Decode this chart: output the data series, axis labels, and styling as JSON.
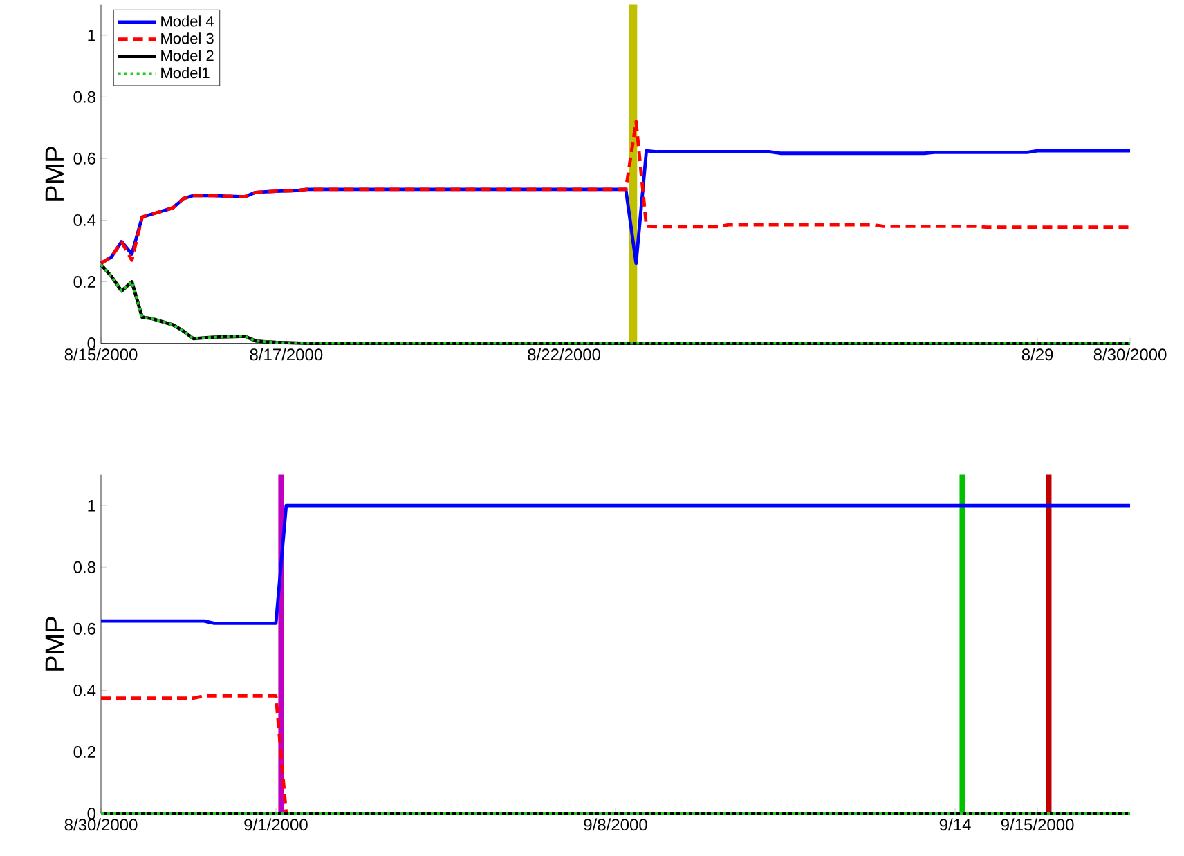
{
  "chart_data": [
    {
      "type": "line",
      "ylabel": "PMP",
      "ylim": [
        0,
        1.1
      ],
      "categories": [
        "8/15/2000",
        null,
        null,
        null,
        null,
        null,
        null,
        null,
        null,
        null,
        null,
        null,
        null,
        null,
        null,
        null,
        null,
        null,
        "8/17/2000",
        null,
        null,
        null,
        null,
        null,
        null,
        null,
        null,
        null,
        null,
        null,
        null,
        null,
        null,
        null,
        null,
        null,
        null,
        null,
        null,
        null,
        null,
        null,
        null,
        null,
        null,
        "8/22/2000",
        null,
        null,
        null,
        null,
        null,
        null,
        null,
        null,
        null,
        null,
        null,
        null,
        null,
        null,
        null,
        null,
        null,
        null,
        null,
        null,
        null,
        null,
        null,
        null,
        null,
        null,
        null,
        null,
        null,
        null,
        null,
        null,
        null,
        null,
        null,
        null,
        null,
        null,
        null,
        null,
        null,
        null,
        null,
        null,
        null,
        "8/29",
        null,
        null,
        null,
        null,
        null,
        null,
        null,
        null,
        "8/30/2000"
      ],
      "yticks": [
        0,
        0.2,
        0.4,
        0.6,
        0.8,
        1
      ],
      "grid": false,
      "legend": "top left",
      "marker": "none",
      "series": [
        {
          "name": "Model 4",
          "color": "#0000ff",
          "line_style": "solid",
          "values": [
            0.26,
            0.28,
            0.33,
            0.29,
            0.41,
            0.42,
            0.43,
            0.44,
            0.47,
            0.48,
            0.48,
            0.48,
            0.478,
            0.477,
            0.476,
            0.49,
            0.492,
            0.494,
            0.495,
            0.496,
            0.5,
            0.5,
            0.5,
            0.5,
            0.5,
            0.5,
            0.5,
            0.5,
            0.5,
            0.5,
            0.5,
            0.5,
            0.5,
            0.5,
            0.5,
            0.5,
            0.5,
            0.5,
            0.5,
            0.5,
            0.5,
            0.5,
            0.5,
            0.5,
            0.5,
            0.5,
            0.5,
            0.5,
            0.5,
            0.5,
            0.5,
            0.5,
            0.26,
            0.625,
            0.622,
            0.622,
            0.622,
            0.622,
            0.622,
            0.622,
            0.622,
            0.622,
            0.622,
            0.622,
            0.622,
            0.622,
            0.617,
            0.617,
            0.617,
            0.617,
            0.617,
            0.617,
            0.617,
            0.617,
            0.617,
            0.617,
            0.617,
            0.617,
            0.617,
            0.617,
            0.617,
            0.62,
            0.62,
            0.62,
            0.62,
            0.62,
            0.62,
            0.62,
            0.62,
            0.62,
            0.62,
            0.625,
            0.625,
            0.625,
            0.625,
            0.625,
            0.625,
            0.625,
            0.625,
            0.625,
            0.625
          ]
        },
        {
          "name": "Model 3",
          "color": "#ff0000",
          "line_style": "dashed",
          "values": [
            0.26,
            0.28,
            0.33,
            0.27,
            0.41,
            0.42,
            0.43,
            0.44,
            0.47,
            0.48,
            0.48,
            0.48,
            0.478,
            0.477,
            0.476,
            0.49,
            0.492,
            0.494,
            0.495,
            0.496,
            0.5,
            0.5,
            0.5,
            0.5,
            0.5,
            0.5,
            0.5,
            0.5,
            0.5,
            0.5,
            0.5,
            0.5,
            0.5,
            0.5,
            0.5,
            0.5,
            0.5,
            0.5,
            0.5,
            0.5,
            0.5,
            0.5,
            0.5,
            0.5,
            0.5,
            0.5,
            0.5,
            0.5,
            0.5,
            0.5,
            0.5,
            0.5,
            0.72,
            0.38,
            0.379,
            0.379,
            0.379,
            0.379,
            0.379,
            0.379,
            0.379,
            0.385,
            0.385,
            0.385,
            0.385,
            0.385,
            0.385,
            0.385,
            0.385,
            0.385,
            0.385,
            0.385,
            0.385,
            0.385,
            0.385,
            0.385,
            0.38,
            0.38,
            0.38,
            0.38,
            0.38,
            0.38,
            0.38,
            0.38,
            0.38,
            0.38,
            0.377,
            0.377,
            0.377,
            0.377,
            0.377,
            0.377,
            0.377,
            0.377,
            0.377,
            0.377,
            0.377,
            0.377,
            0.377,
            0.377,
            0.377
          ]
        },
        {
          "name": "Model 2",
          "color": "#000000",
          "line_style": "solid",
          "values": [
            0.256,
            0.218,
            0.17,
            0.2,
            0.085,
            0.08,
            0.07,
            0.06,
            0.04,
            0.015,
            0.018,
            0.02,
            0.021,
            0.022,
            0.023,
            0.008,
            0.005,
            0.003,
            0.002,
            0.001,
            0,
            0,
            0,
            0,
            0,
            0,
            0,
            0,
            0,
            0,
            0,
            0,
            0,
            0,
            0,
            0,
            0,
            0,
            0,
            0,
            0,
            0,
            0,
            0,
            0,
            0,
            0,
            0,
            0,
            0,
            0,
            0,
            0,
            0,
            0,
            0,
            0,
            0,
            0,
            0,
            0,
            0,
            0,
            0,
            0,
            0,
            0,
            0,
            0,
            0,
            0,
            0,
            0,
            0,
            0,
            0,
            0,
            0,
            0,
            0,
            0,
            0,
            0,
            0,
            0,
            0,
            0,
            0,
            0,
            0,
            0,
            0,
            0,
            0,
            0,
            0,
            0,
            0,
            0,
            0,
            0
          ]
        },
        {
          "name": "Model1",
          "color": "#22cc22",
          "line_style": "dotted",
          "values": [
            0.256,
            0.218,
            0.17,
            0.2,
            0.085,
            0.08,
            0.07,
            0.06,
            0.04,
            0.015,
            0.018,
            0.02,
            0.021,
            0.022,
            0.023,
            0.008,
            0.005,
            0.003,
            0.002,
            0.001,
            0,
            0,
            0,
            0,
            0,
            0,
            0,
            0,
            0,
            0,
            0,
            0,
            0,
            0,
            0,
            0,
            0,
            0,
            0,
            0,
            0,
            0,
            0,
            0,
            0,
            0,
            0,
            0,
            0,
            0,
            0,
            0,
            0,
            0,
            0,
            0,
            0,
            0,
            0,
            0,
            0,
            0,
            0,
            0,
            0,
            0,
            0,
            0,
            0,
            0,
            0,
            0,
            0,
            0,
            0,
            0,
            0,
            0,
            0,
            0,
            0,
            0,
            0,
            0,
            0,
            0,
            0,
            0,
            0,
            0,
            0,
            0,
            0,
            0,
            0,
            0,
            0,
            0,
            0,
            0,
            0
          ]
        }
      ]
    },
    {
      "type": "line",
      "ylabel": "PMP",
      "ylim": [
        0,
        1.1
      ],
      "categories": [
        "8/30/2000",
        null,
        null,
        null,
        null,
        null,
        null,
        null,
        null,
        null,
        null,
        null,
        null,
        null,
        null,
        null,
        null,
        "9/1/2000",
        null,
        null,
        null,
        null,
        null,
        null,
        null,
        null,
        null,
        null,
        null,
        null,
        null,
        null,
        null,
        null,
        null,
        null,
        null,
        null,
        null,
        null,
        null,
        null,
        null,
        null,
        null,
        null,
        null,
        null,
        null,
        null,
        "9/8/2000",
        null,
        null,
        null,
        null,
        null,
        null,
        null,
        null,
        null,
        null,
        null,
        null,
        null,
        null,
        null,
        null,
        null,
        null,
        null,
        null,
        null,
        null,
        null,
        null,
        null,
        null,
        null,
        null,
        null,
        null,
        null,
        null,
        "9/14",
        null,
        null,
        null,
        null,
        null,
        null,
        null,
        "9/15/2000",
        null,
        null,
        null,
        null,
        null,
        null,
        null,
        null,
        null
      ],
      "yticks": [
        0,
        0.2,
        0.4,
        0.6,
        0.8,
        1
      ],
      "grid": false,
      "legend": false,
      "marker": "none",
      "series": [
        {
          "color": "#0000ff",
          "line_style": "solid",
          "values": [
            0.625,
            0.625,
            0.625,
            0.625,
            0.625,
            0.625,
            0.625,
            0.625,
            0.625,
            0.625,
            0.625,
            0.618,
            0.618,
            0.618,
            0.618,
            0.618,
            0.618,
            0.618,
            1,
            1,
            1,
            1,
            1,
            1,
            1,
            1,
            1,
            1,
            1,
            1,
            1,
            1,
            1,
            1,
            1,
            1,
            1,
            1,
            1,
            1,
            1,
            1,
            1,
            1,
            1,
            1,
            1,
            1,
            1,
            1,
            1,
            1,
            1,
            1,
            1,
            1,
            1,
            1,
            1,
            1,
            1,
            1,
            1,
            1,
            1,
            1,
            1,
            1,
            1,
            1,
            1,
            1,
            1,
            1,
            1,
            1,
            1,
            1,
            1,
            1,
            1,
            1,
            1,
            1,
            1,
            1,
            1,
            1,
            1,
            1,
            1,
            1,
            1,
            1,
            1,
            1,
            1,
            1,
            1,
            1,
            1
          ]
        },
        {
          "color": "#ff0000",
          "line_style": "dashed",
          "values": [
            0.375,
            0.375,
            0.375,
            0.375,
            0.375,
            0.375,
            0.375,
            0.375,
            0.375,
            0.375,
            0.382,
            0.382,
            0.382,
            0.382,
            0.382,
            0.382,
            0.382,
            0.382,
            0,
            null,
            null,
            null,
            null,
            null,
            null,
            null,
            null,
            null,
            null,
            null,
            null,
            null,
            null,
            null,
            null,
            null,
            null,
            null,
            null,
            null,
            null,
            null,
            null,
            null,
            null,
            null,
            null,
            null,
            null,
            null,
            null,
            null,
            null,
            null,
            null,
            null,
            null,
            null,
            null,
            null,
            null,
            null,
            null,
            null,
            null,
            null,
            null,
            null,
            null,
            null,
            null,
            null,
            null,
            null,
            null,
            null,
            null,
            null,
            null,
            null,
            null,
            null,
            null,
            null,
            null,
            null,
            null,
            null,
            null,
            null,
            null,
            null,
            null,
            null,
            null,
            null,
            null,
            null,
            null,
            null,
            null
          ]
        },
        {
          "color": "#000000",
          "line_style": "solid",
          "values": [
            0,
            0,
            0,
            0,
            0,
            0,
            0,
            0,
            0,
            0,
            0,
            0,
            0,
            0,
            0,
            0,
            0,
            0,
            0,
            0,
            0,
            0,
            0,
            0,
            0,
            0,
            0,
            0,
            0,
            0,
            0,
            0,
            0,
            0,
            0,
            0,
            0,
            0,
            0,
            0,
            0,
            0,
            0,
            0,
            0,
            0,
            0,
            0,
            0,
            0,
            0,
            0,
            0,
            0,
            0,
            0,
            0,
            0,
            0,
            0,
            0,
            0,
            0,
            0,
            0,
            0,
            0,
            0,
            0,
            0,
            0,
            0,
            0,
            0,
            0,
            0,
            0,
            0,
            0,
            0,
            0,
            0,
            0,
            0,
            0,
            0,
            0,
            0,
            0,
            0,
            0,
            0,
            0,
            0,
            0,
            0,
            0,
            0,
            0,
            0,
            0
          ]
        },
        {
          "color": "#22cc22",
          "line_style": "dotted",
          "values": [
            0,
            0,
            0,
            0,
            0,
            0,
            0,
            0,
            0,
            0,
            0,
            0,
            0,
            0,
            0,
            0,
            0,
            0,
            0,
            0,
            0,
            0,
            0,
            0,
            0,
            0,
            0,
            0,
            0,
            0,
            0,
            0,
            0,
            0,
            0,
            0,
            0,
            0,
            0,
            0,
            0,
            0,
            0,
            0,
            0,
            0,
            0,
            0,
            0,
            0,
            0,
            0,
            0,
            0,
            0,
            0,
            0,
            0,
            0,
            0,
            0,
            0,
            0,
            0,
            0,
            0,
            0,
            0,
            0,
            0,
            0,
            0,
            0,
            0,
            0,
            0,
            0,
            0,
            0,
            0,
            0,
            0,
            0,
            0,
            0,
            0,
            0,
            0,
            0,
            0,
            0,
            0,
            0,
            0,
            0,
            0,
            0,
            0,
            0,
            0,
            0
          ]
        }
      ]
    }
  ]
}
